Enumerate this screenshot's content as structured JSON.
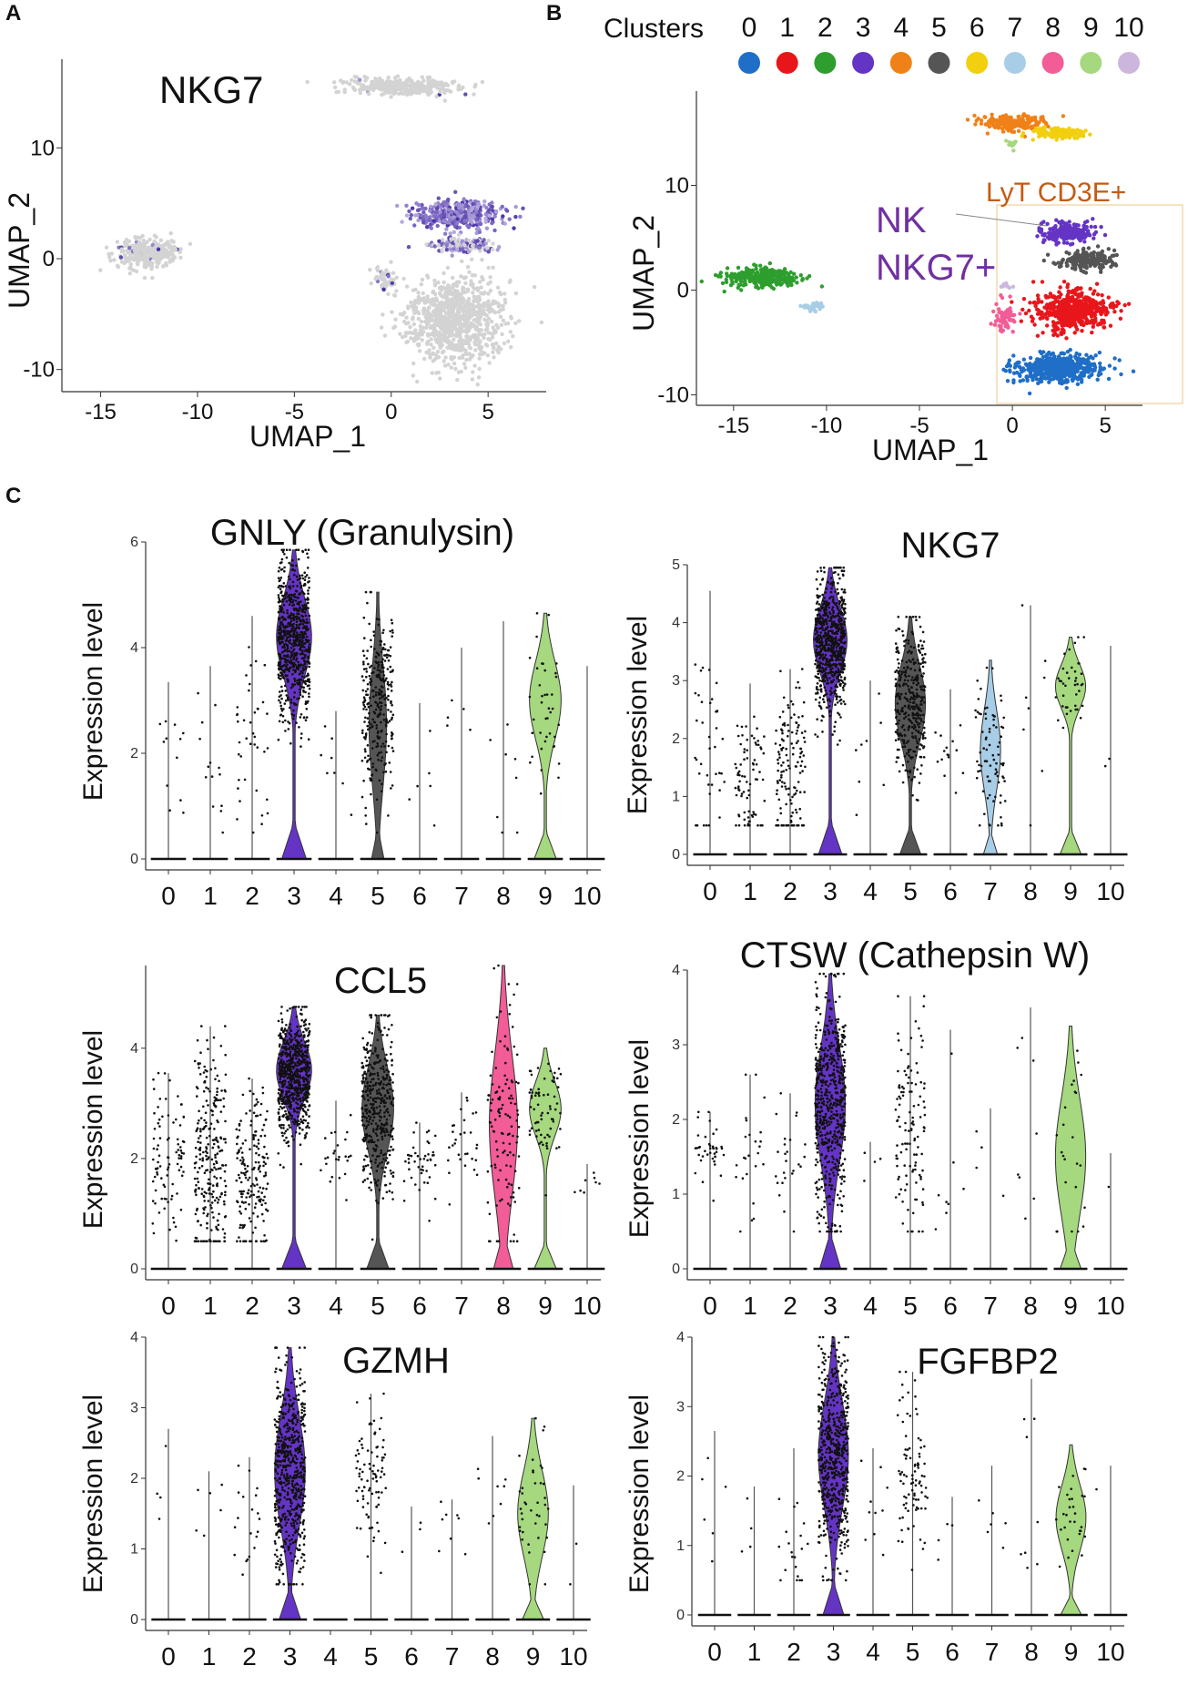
{
  "panels": {
    "a": "A",
    "b": "B",
    "c": "C"
  },
  "colors": {
    "clusters": [
      "#1f6ec7",
      "#e8161b",
      "#2e9e2e",
      "#6434c4",
      "#f08118",
      "#555555",
      "#f2cf0f",
      "#a8cde6",
      "#f25c97",
      "#a6d87f",
      "#cdb6dd"
    ],
    "nk_annotation": "#7030a0",
    "lyt_annotation": "#c55a11",
    "expression_low": "#d3d3d3",
    "expression_high": "#4b2fa8"
  },
  "chart_data": [
    {
      "id": "umap_nkg7",
      "type": "scatter",
      "title": "NKG7",
      "xlabel": "UMAP_1",
      "ylabel": "UMAP_2",
      "xlim": [
        -17,
        8
      ],
      "ylim": [
        -12,
        18
      ],
      "x_ticks": [
        -15,
        -10,
        -5,
        0,
        5
      ],
      "y_ticks": [
        -10,
        0,
        10
      ],
      "groups": [
        {
          "name": "cluster 2 region",
          "cx": -12.5,
          "cy": 0.5,
          "sx": 1.5,
          "sy": 1.2,
          "n": 320,
          "nkg7_fraction": 0.05
        },
        {
          "name": "top cluster region",
          "cx": 0.5,
          "cy": 15.5,
          "sx": 2.8,
          "sy": 0.7,
          "n": 320,
          "nkg7_fraction": 0.05
        },
        {
          "name": "cluster 3 region",
          "cx": 3.5,
          "cy": 4.0,
          "sx": 2.0,
          "sy": 1.1,
          "n": 450,
          "nkg7_fraction": 1.0
        },
        {
          "name": "cluster 5 region",
          "cx": 3.6,
          "cy": 1.2,
          "sx": 1.5,
          "sy": 0.6,
          "n": 150,
          "nkg7_fraction": 0.6
        },
        {
          "name": "clusters 1 and 0 region",
          "cx": 3.2,
          "cy": -5.5,
          "sx": 2.3,
          "sy": 3.5,
          "n": 900,
          "nkg7_fraction": 0.0
        },
        {
          "name": "cluster 8 region",
          "cx": -0.3,
          "cy": -2.0,
          "sx": 0.6,
          "sy": 1.3,
          "n": 60,
          "nkg7_fraction": 0.15
        }
      ]
    },
    {
      "id": "umap_clusters",
      "type": "scatter",
      "legend_title": "Clusters",
      "legend_labels": [
        "0",
        "1",
        "2",
        "3",
        "4",
        "5",
        "6",
        "7",
        "8",
        "9",
        "10"
      ],
      "xlabel": "UMAP_1",
      "ylabel": "UMAP_2",
      "xlim": [
        -17,
        7
      ],
      "ylim": [
        -11,
        19
      ],
      "x_ticks": [
        -15,
        -10,
        -5,
        0,
        5
      ],
      "y_ticks": [
        -10,
        0,
        10
      ],
      "annotations": [
        "NK",
        "NKG7+",
        "LyT CD3E+"
      ],
      "groups": [
        {
          "cluster": 0,
          "cx": 2.5,
          "cy": -7.5,
          "sx": 2.0,
          "sy": 1.3,
          "n": 500
        },
        {
          "cluster": 1,
          "cx": 3.3,
          "cy": -2.0,
          "sx": 1.8,
          "sy": 1.8,
          "n": 500
        },
        {
          "cluster": 2,
          "cx": -13.5,
          "cy": 1.2,
          "sx": 1.8,
          "sy": 0.8,
          "n": 300
        },
        {
          "cluster": 3,
          "cx": 3.0,
          "cy": 5.5,
          "sx": 1.3,
          "sy": 0.8,
          "n": 220
        },
        {
          "cluster": 4,
          "cx": 0.0,
          "cy": 16.0,
          "sx": 1.6,
          "sy": 0.6,
          "n": 200
        },
        {
          "cluster": 5,
          "cx": 4.0,
          "cy": 2.8,
          "sx": 1.3,
          "sy": 0.8,
          "n": 200
        },
        {
          "cluster": 6,
          "cx": 2.5,
          "cy": 15.0,
          "sx": 1.3,
          "sy": 0.5,
          "n": 130
        },
        {
          "cluster": 7,
          "cx": -10.7,
          "cy": -1.6,
          "sx": 0.5,
          "sy": 0.4,
          "n": 35
        },
        {
          "cluster": 8,
          "cx": -0.4,
          "cy": -2.5,
          "sx": 0.6,
          "sy": 1.3,
          "n": 70
        },
        {
          "cluster": 9,
          "cx": 0.0,
          "cy": 14.0,
          "sx": 0.4,
          "sy": 0.3,
          "n": 15
        },
        {
          "cluster": 10,
          "cx": -0.3,
          "cy": 0.3,
          "sx": 0.3,
          "sy": 0.3,
          "n": 8
        }
      ]
    },
    {
      "id": "violin_gnly",
      "type": "violin",
      "title": "GNLY (Granulysin)",
      "ylabel": "Expression level",
      "categories": [
        "0",
        "1",
        "2",
        "3",
        "4",
        "5",
        "6",
        "7",
        "8",
        "9",
        "10"
      ],
      "ylim": [
        0,
        6
      ],
      "y_ticks": [
        0,
        2,
        4,
        6
      ],
      "max_values": [
        3.35,
        3.65,
        4.6,
        5.85,
        2.8,
        5.05,
        2.95,
        4.0,
        4.5,
        4.65,
        3.65
      ],
      "filled": [
        3,
        5,
        9
      ],
      "shape_center": [
        0,
        0,
        0,
        4.2,
        0,
        0,
        0,
        0,
        0,
        3.0,
        0
      ],
      "shape_width": [
        0,
        0,
        0,
        1.0,
        0,
        0.5,
        0,
        0,
        0,
        0.9,
        0
      ],
      "scatter_counts": [
        12,
        14,
        40,
        700,
        8,
        300,
        6,
        5,
        8,
        40,
        0
      ],
      "scatter_center": [
        1.9,
        1.8,
        2.2,
        4.2,
        1.8,
        3.0,
        1.6,
        2.5,
        1.8,
        3.0,
        0
      ]
    },
    {
      "id": "violin_nkg7",
      "type": "violin",
      "title": "NKG7",
      "ylabel": "Expression level",
      "categories": [
        "0",
        "1",
        "2",
        "3",
        "4",
        "5",
        "6",
        "7",
        "8",
        "9",
        "10"
      ],
      "ylim": [
        0,
        5
      ],
      "y_ticks": [
        0,
        1,
        2,
        3,
        4,
        5
      ],
      "max_values": [
        4.55,
        2.95,
        3.2,
        4.95,
        3.0,
        4.1,
        2.85,
        3.35,
        4.3,
        3.75,
        3.6
      ],
      "filled": [
        3,
        5,
        7,
        9
      ],
      "shape_center": [
        0,
        0,
        0,
        3.7,
        0,
        2.6,
        0,
        1.8,
        0,
        2.9,
        0
      ],
      "shape_width": [
        0,
        0,
        0,
        1.0,
        0,
        0.9,
        0,
        0.6,
        0,
        0.9,
        0
      ],
      "scatter_counts": [
        40,
        80,
        140,
        700,
        8,
        350,
        15,
        80,
        8,
        40,
        2
      ],
      "scatter_center": [
        1.6,
        1.4,
        1.5,
        3.7,
        1.6,
        2.6,
        1.8,
        1.8,
        2.0,
        2.9,
        1.5
      ]
    },
    {
      "id": "violin_ccl5",
      "type": "violin",
      "title": "CCL5",
      "ylabel": "Expression level",
      "categories": [
        "0",
        "1",
        "2",
        "3",
        "4",
        "5",
        "6",
        "7",
        "8",
        "9",
        "10"
      ],
      "ylim": [
        0,
        5.5
      ],
      "y_ticks": [
        0,
        2,
        4
      ],
      "max_values": [
        3.55,
        4.4,
        3.45,
        4.75,
        3.05,
        4.6,
        2.65,
        3.2,
        5.5,
        4.0,
        1.9
      ],
      "filled": [
        3,
        5,
        8,
        9
      ],
      "shape_center": [
        0,
        0,
        0,
        3.6,
        0,
        2.9,
        0,
        0,
        2.6,
        2.9,
        0
      ],
      "shape_width": [
        0,
        0,
        0,
        1.0,
        0,
        0.9,
        0,
        0,
        0.8,
        0.9,
        0
      ],
      "scatter_counts": [
        90,
        260,
        180,
        700,
        25,
        400,
        45,
        30,
        120,
        70,
        8
      ],
      "scatter_center": [
        2.0,
        2.0,
        1.8,
        3.5,
        2.1,
        2.9,
        1.9,
        2.2,
        2.6,
        2.9,
        1.5
      ]
    },
    {
      "id": "violin_ctsw",
      "type": "violin",
      "title": "CTSW (Cathepsin W)",
      "ylabel": "Expression level",
      "categories": [
        "0",
        "1",
        "2",
        "3",
        "4",
        "5",
        "6",
        "7",
        "8",
        "9",
        "10"
      ],
      "ylim": [
        0,
        4
      ],
      "y_ticks": [
        0,
        1,
        2,
        3,
        4
      ],
      "max_values": [
        2.1,
        2.6,
        2.35,
        3.95,
        1.7,
        3.65,
        3.2,
        2.15,
        3.5,
        3.25,
        1.55
      ],
      "filled": [
        3,
        9
      ],
      "shape_center": [
        0,
        0,
        0,
        2.2,
        0,
        0,
        0,
        0,
        0,
        1.5,
        0
      ],
      "shape_width": [
        0,
        0,
        0,
        0.9,
        0,
        0,
        0,
        0,
        0,
        0.9,
        0
      ],
      "scatter_counts": [
        40,
        25,
        25,
        600,
        4,
        120,
        8,
        4,
        8,
        25,
        1
      ],
      "scatter_center": [
        1.6,
        1.5,
        1.4,
        2.2,
        1.3,
        1.9,
        1.4,
        1.5,
        1.8,
        1.5,
        1.2
      ]
    },
    {
      "id": "violin_gzmh",
      "type": "violin",
      "title": "GZMH",
      "ylabel": "Expression level",
      "categories": [
        "0",
        "1",
        "2",
        "3",
        "4",
        "5",
        "6",
        "7",
        "8",
        "9",
        "10"
      ],
      "ylim": [
        0,
        4
      ],
      "y_ticks": [
        0,
        1,
        2,
        3,
        4
      ],
      "max_values": [
        2.7,
        2.1,
        2.3,
        3.85,
        0,
        3.2,
        1.6,
        1.7,
        2.6,
        2.85,
        1.9
      ],
      "filled": [
        3,
        9
      ],
      "shape_center": [
        0,
        0,
        0,
        2.1,
        0,
        0,
        0,
        0,
        0,
        1.5,
        0
      ],
      "shape_width": [
        0,
        0,
        0,
        0.9,
        0,
        0,
        0,
        0,
        0,
        0.9,
        0
      ],
      "scatter_counts": [
        4,
        6,
        20,
        600,
        0,
        90,
        3,
        8,
        8,
        40,
        2
      ],
      "scatter_center": [
        1.8,
        1.5,
        1.3,
        2.1,
        0,
        2.0,
        1.2,
        1.2,
        1.5,
        1.5,
        1.0
      ]
    },
    {
      "id": "violin_fgfbp2",
      "type": "violin",
      "title": "FGFBP2",
      "ylabel": "Expression level",
      "categories": [
        "0",
        "1",
        "2",
        "3",
        "4",
        "5",
        "6",
        "7",
        "8",
        "9",
        "10"
      ],
      "ylim": [
        0,
        4
      ],
      "y_ticks": [
        0,
        1,
        2,
        3,
        4
      ],
      "max_values": [
        2.65,
        1.85,
        2.4,
        4.0,
        2.4,
        3.5,
        1.7,
        2.15,
        3.4,
        2.45,
        2.15
      ],
      "filled": [
        3,
        9
      ],
      "shape_center": [
        0,
        0,
        0,
        2.3,
        0,
        0,
        0,
        0,
        0,
        1.4,
        0
      ],
      "shape_width": [
        0,
        0,
        0,
        0.9,
        0,
        0,
        0,
        0,
        0,
        0.9,
        0
      ],
      "scatter_counts": [
        6,
        4,
        20,
        600,
        10,
        90,
        4,
        6,
        8,
        30,
        1
      ],
      "scatter_center": [
        1.8,
        1.2,
        1.0,
        2.3,
        1.5,
        2.1,
        1.1,
        1.4,
        1.6,
        1.4,
        1.6
      ]
    }
  ]
}
